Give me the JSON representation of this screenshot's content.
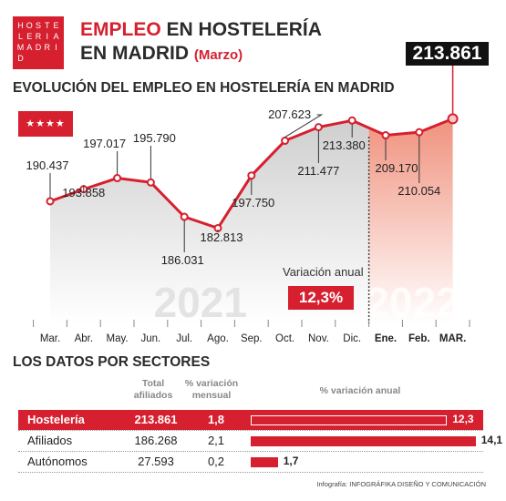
{
  "logo": {
    "rows": [
      [
        "H",
        "O",
        "S",
        "T",
        "E"
      ],
      [
        "L",
        "E",
        "R",
        "I",
        "A"
      ],
      [
        "M",
        "A",
        "D",
        "R",
        "I"
      ],
      [
        "D"
      ]
    ]
  },
  "header": {
    "title_line1_red": "EMPLEO",
    "title_line1_dark": "EN HOSTELERÍA",
    "title_line2_dark": "EN MADRID",
    "title_line2_small": "(Marzo)",
    "latest_value": "213.861"
  },
  "flag": {
    "stars": "★★★★"
  },
  "chart_data": {
    "type": "line",
    "title": "EVOLUCIÓN DEL EMPLEO EN HOSTELERÍA EN MADRID",
    "categories": [
      "Mar.",
      "Abr.",
      "May.",
      "Jun.",
      "Jul.",
      "Ago.",
      "Sep.",
      "Oct.",
      "Nov.",
      "Dic.",
      "Ene.",
      "Feb.",
      "MAR."
    ],
    "values": [
      190437,
      193858,
      197017,
      195790,
      186031,
      182813,
      197750,
      207623,
      211477,
      213380,
      209170,
      210054,
      213861
    ],
    "value_labels": [
      "190.437",
      "193.858",
      "197.017",
      "195.790",
      "186.031",
      "182.813",
      "197.750",
      "207.623",
      "211.477",
      "213.380",
      "209.170",
      "210.054",
      "213.861"
    ],
    "year_labels": [
      "2021",
      "2022"
    ],
    "highlight_from_index": 10,
    "colors": {
      "line": "#d6202f",
      "area2021": "#d9d9d9",
      "area2022": "#f4b4a8"
    }
  },
  "variation": {
    "label": "Variación anual",
    "value": "12,3%"
  },
  "sectors": {
    "title": "LOS DATOS POR SECTORES",
    "headers": {
      "total": "Total afiliados",
      "mensual": "% variación mensual",
      "anual": "% variación anual"
    },
    "rows": [
      {
        "name": "Hostelería",
        "total": "213.861",
        "mensual": "1,8",
        "anual": 12.3,
        "anual_label": "12,3"
      },
      {
        "name": "Afiliados",
        "total": "186.268",
        "mensual": "2,1",
        "anual": 14.1,
        "anual_label": "14,1"
      },
      {
        "name": "Autónomos",
        "total": "27.593",
        "mensual": "0,2",
        "anual": 1.7,
        "anual_label": "1,7"
      }
    ]
  },
  "credit": "Infografía: INFOGRÁFIKA DISEÑO Y COMUNICACIÓN"
}
